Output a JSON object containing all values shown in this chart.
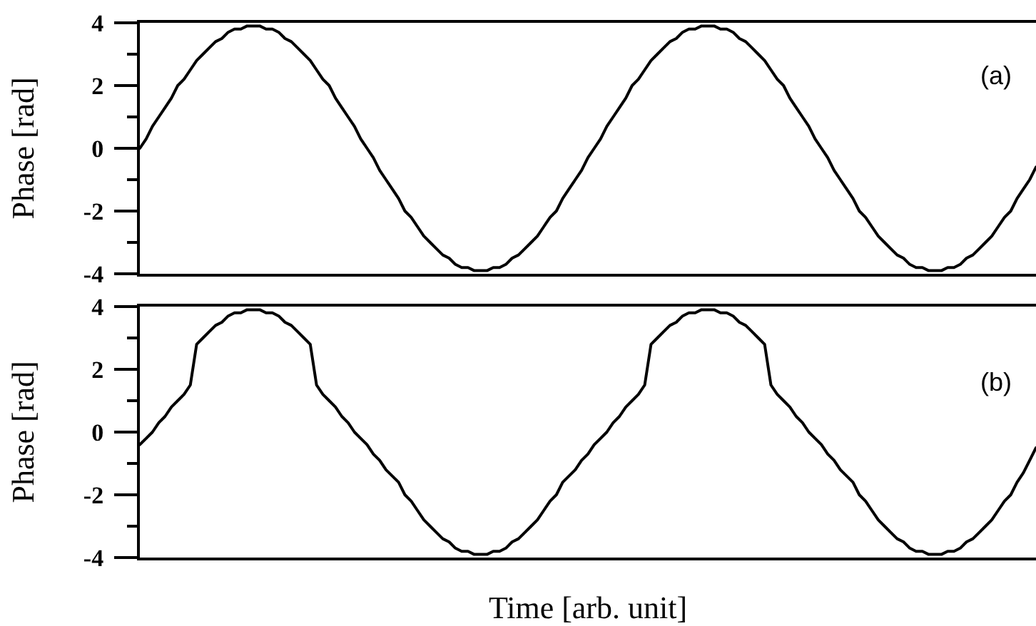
{
  "chart_data": [
    {
      "type": "line",
      "ylabel": "Phase [rad]",
      "annotations": [
        "(a)"
      ],
      "tick_labels": "y",
      "color": "#000000",
      "ylim": [
        -4,
        4
      ],
      "yticks": [
        -4,
        {
          "value": -3,
          "label": null
        },
        -2,
        {
          "value": -1,
          "label": null
        },
        0,
        {
          "value": 1,
          "label": null
        },
        2,
        {
          "value": 3,
          "label": null
        },
        4
      ],
      "categories": [
        null,
        null,
        null,
        null,
        null,
        null,
        null,
        null,
        null,
        null,
        null,
        null,
        null,
        null,
        null,
        null,
        null,
        null,
        null,
        null,
        null,
        null,
        null,
        null,
        null,
        null,
        null,
        null,
        null,
        null,
        null,
        null,
        null,
        null,
        null,
        null,
        null,
        null,
        null,
        null,
        null,
        null,
        null,
        null,
        null,
        null,
        null,
        null,
        null,
        null,
        null,
        null,
        null,
        null,
        null,
        null,
        null,
        null,
        null,
        null,
        null,
        null,
        null,
        null,
        null,
        null,
        null,
        null,
        null,
        null,
        null,
        null,
        null,
        null,
        null,
        null,
        null,
        null,
        null,
        null,
        null,
        null,
        null,
        null,
        null,
        null,
        null,
        null,
        null,
        null,
        null,
        null,
        null,
        null,
        null,
        null,
        null,
        null,
        null,
        null,
        null,
        null,
        null,
        null,
        null,
        null,
        null,
        null,
        null,
        null,
        null,
        null,
        null,
        null,
        null,
        null,
        null,
        null,
        null,
        null,
        null,
        null,
        null,
        null,
        null,
        null,
        null,
        null,
        null,
        null,
        null,
        null,
        null,
        null,
        null,
        null,
        null,
        null,
        null,
        null,
        null,
        null,
        null
      ],
      "values": [
        0,
        0.3,
        0.7,
        1.0,
        1.3,
        1.6,
        2.0,
        2.2,
        2.5,
        2.8,
        3.0,
        3.2,
        3.4,
        3.5,
        3.7,
        3.8,
        3.8,
        3.9,
        3.9,
        3.9,
        3.8,
        3.8,
        3.7,
        3.5,
        3.4,
        3.2,
        3.0,
        2.8,
        2.5,
        2.2,
        2.0,
        1.6,
        1.3,
        1.0,
        0.7,
        0.3,
        0,
        -0.3,
        -0.7,
        -1.0,
        -1.3,
        -1.6,
        -2.0,
        -2.2,
        -2.5,
        -2.8,
        -3.0,
        -3.2,
        -3.4,
        -3.5,
        -3.7,
        -3.8,
        -3.8,
        -3.9,
        -3.9,
        -3.9,
        -3.8,
        -3.8,
        -3.7,
        -3.5,
        -3.4,
        -3.2,
        -3.0,
        -2.8,
        -2.5,
        -2.2,
        -2.0,
        -1.6,
        -1.3,
        -1.0,
        -0.7,
        -0.3,
        0,
        0.3,
        0.7,
        1.0,
        1.3,
        1.6,
        2.0,
        2.2,
        2.5,
        2.8,
        3.0,
        3.2,
        3.4,
        3.5,
        3.7,
        3.8,
        3.8,
        3.9,
        3.9,
        3.9,
        3.8,
        3.8,
        3.7,
        3.5,
        3.4,
        3.2,
        3.0,
        2.8,
        2.5,
        2.2,
        2.0,
        1.6,
        1.3,
        1.0,
        0.7,
        0.3,
        0,
        -0.3,
        -0.7,
        -1.0,
        -1.3,
        -1.6,
        -2.0,
        -2.2,
        -2.5,
        -2.8,
        -3.0,
        -3.2,
        -3.4,
        -3.5,
        -3.7,
        -3.8,
        -3.8,
        -3.9,
        -3.9,
        -3.9,
        -3.8,
        -3.8,
        -3.7,
        -3.5,
        -3.4,
        -3.2,
        -3.0,
        -2.8,
        -2.5,
        -2.2,
        -2.0,
        -1.6,
        -1.3,
        -1.0,
        -0.6
      ]
    },
    {
      "type": "line",
      "ylabel": "Phase [rad]",
      "xlabel": "Time [arb. unit]",
      "annotations": [
        "(b)"
      ],
      "tick_labels": "y",
      "color": "#000000",
      "ylim": [
        -4,
        4
      ],
      "yticks": [
        -4,
        {
          "value": -3,
          "label": null
        },
        -2,
        {
          "value": -1,
          "label": null
        },
        0,
        {
          "value": 1,
          "label": null
        },
        2,
        {
          "value": 3,
          "label": null
        },
        4
      ],
      "categories": [
        null,
        null,
        null,
        null,
        null,
        null,
        null,
        null,
        null,
        null,
        null,
        null,
        null,
        null,
        null,
        null,
        null,
        null,
        null,
        null,
        null,
        null,
        null,
        null,
        null,
        null,
        null,
        null,
        null,
        null,
        null,
        null,
        null,
        null,
        null,
        null,
        null,
        null,
        null,
        null,
        null,
        null,
        null,
        null,
        null,
        null,
        null,
        null,
        null,
        null,
        null,
        null,
        null,
        null,
        null,
        null,
        null,
        null,
        null,
        null,
        null,
        null,
        null,
        null,
        null,
        null,
        null,
        null,
        null,
        null,
        null,
        null,
        null,
        null,
        null,
        null,
        null,
        null,
        null,
        null,
        null,
        null,
        null,
        null,
        null,
        null,
        null,
        null,
        null,
        null,
        null,
        null,
        null,
        null,
        null,
        null,
        null,
        null,
        null,
        null,
        null,
        null,
        null,
        null,
        null,
        null,
        null,
        null,
        null,
        null,
        null,
        null,
        null,
        null,
        null,
        null,
        null,
        null,
        null,
        null,
        null,
        null,
        null,
        null,
        null,
        null,
        null,
        null,
        null,
        null,
        null,
        null,
        null,
        null,
        null,
        null,
        null,
        null,
        null,
        null,
        null,
        null,
        null
      ],
      "values": [
        -0.4,
        -0.2,
        0.0,
        0.3,
        0.5,
        0.8,
        1.0,
        1.2,
        1.5,
        2.8,
        3.0,
        3.2,
        3.4,
        3.5,
        3.7,
        3.8,
        3.8,
        3.9,
        3.9,
        3.9,
        3.8,
        3.8,
        3.7,
        3.5,
        3.4,
        3.2,
        3.0,
        2.8,
        1.5,
        1.2,
        1.0,
        0.8,
        0.5,
        0.3,
        0.0,
        -0.2,
        -0.4,
        -0.7,
        -0.9,
        -1.2,
        -1.4,
        -1.6,
        -2.0,
        -2.2,
        -2.5,
        -2.8,
        -3.0,
        -3.2,
        -3.4,
        -3.5,
        -3.7,
        -3.8,
        -3.8,
        -3.9,
        -3.9,
        -3.9,
        -3.8,
        -3.8,
        -3.7,
        -3.5,
        -3.4,
        -3.2,
        -3.0,
        -2.8,
        -2.5,
        -2.2,
        -2.0,
        -1.6,
        -1.4,
        -1.2,
        -0.9,
        -0.7,
        -0.4,
        -0.2,
        0.0,
        0.3,
        0.5,
        0.8,
        1.0,
        1.2,
        1.5,
        2.8,
        3.0,
        3.2,
        3.4,
        3.5,
        3.7,
        3.8,
        3.8,
        3.9,
        3.9,
        3.9,
        3.8,
        3.8,
        3.7,
        3.5,
        3.4,
        3.2,
        3.0,
        2.8,
        1.5,
        1.2,
        1.0,
        0.8,
        0.5,
        0.3,
        0.0,
        -0.2,
        -0.4,
        -0.7,
        -0.9,
        -1.2,
        -1.4,
        -1.6,
        -2.0,
        -2.2,
        -2.5,
        -2.8,
        -3.0,
        -3.2,
        -3.4,
        -3.5,
        -3.7,
        -3.8,
        -3.8,
        -3.9,
        -3.9,
        -3.9,
        -3.8,
        -3.8,
        -3.7,
        -3.5,
        -3.4,
        -3.2,
        -3.0,
        -2.8,
        -2.5,
        -2.2,
        -2.0,
        -1.6,
        -1.3,
        -0.9,
        -0.5
      ]
    }
  ]
}
